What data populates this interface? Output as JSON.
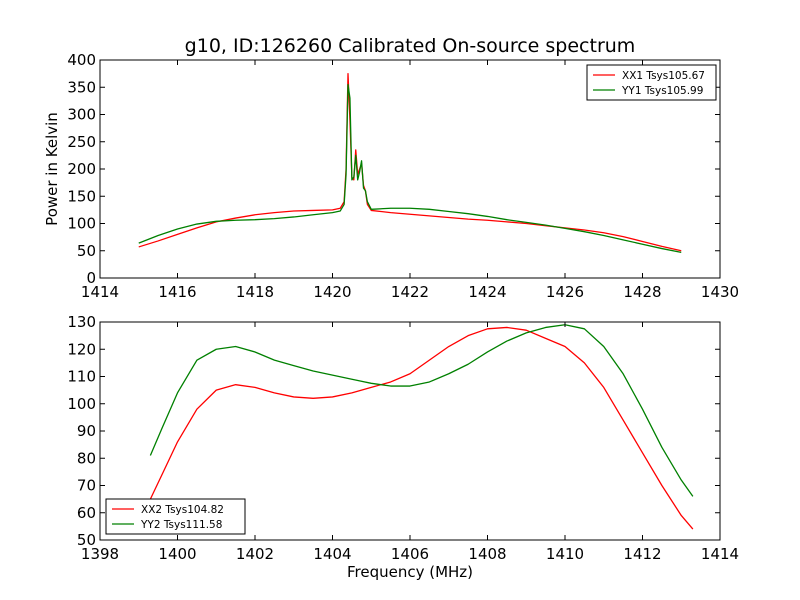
{
  "title": "g10, ID:126260 Calibrated On-source spectrum",
  "colors": {
    "xx": "#ff0000",
    "yy": "#008000",
    "axis": "#000000"
  },
  "chart_data": [
    {
      "type": "line",
      "title": "g10, ID:126260 Calibrated On-source spectrum",
      "xlabel": "",
      "ylabel": "Power in Kelvin",
      "xlim": [
        1414,
        1430
      ],
      "ylim": [
        0,
        400
      ],
      "xticks": [
        1414,
        1416,
        1418,
        1420,
        1422,
        1424,
        1426,
        1428,
        1430
      ],
      "yticks": [
        0,
        50,
        100,
        150,
        200,
        250,
        300,
        350,
        400
      ],
      "grid": false,
      "legend": "top-right",
      "series": [
        {
          "name": "XX1 Tsys105.67",
          "color": "#ff0000",
          "x": [
            1415.0,
            1415.5,
            1416.0,
            1416.5,
            1417.0,
            1417.5,
            1418.0,
            1418.5,
            1419.0,
            1419.5,
            1420.0,
            1420.2,
            1420.3,
            1420.35,
            1420.4,
            1420.45,
            1420.5,
            1420.55,
            1420.6,
            1420.65,
            1420.7,
            1420.75,
            1420.8,
            1420.85,
            1420.9,
            1421.0,
            1421.5,
            1422.0,
            1422.5,
            1423.0,
            1423.5,
            1424.0,
            1424.5,
            1425.0,
            1425.5,
            1426.0,
            1426.5,
            1427.0,
            1427.5,
            1428.0,
            1428.5,
            1429.0
          ],
          "values": [
            57,
            68,
            80,
            92,
            103,
            110,
            116,
            120,
            123,
            124,
            125,
            128,
            140,
            200,
            375,
            290,
            185,
            180,
            235,
            190,
            200,
            210,
            170,
            160,
            135,
            124,
            120,
            117,
            114,
            111,
            108,
            106,
            103,
            100,
            96,
            92,
            88,
            83,
            76,
            67,
            58,
            50
          ]
        },
        {
          "name": "YY1 Tsys105.99",
          "color": "#008000",
          "x": [
            1415.0,
            1415.5,
            1416.0,
            1416.5,
            1417.0,
            1417.5,
            1418.0,
            1418.5,
            1419.0,
            1419.5,
            1420.0,
            1420.2,
            1420.3,
            1420.35,
            1420.4,
            1420.45,
            1420.5,
            1420.55,
            1420.6,
            1420.65,
            1420.7,
            1420.75,
            1420.8,
            1420.85,
            1420.9,
            1421.0,
            1421.5,
            1422.0,
            1422.5,
            1423.0,
            1423.5,
            1424.0,
            1424.5,
            1425.0,
            1425.5,
            1426.0,
            1426.5,
            1427.0,
            1427.5,
            1428.0,
            1428.5,
            1429.0
          ],
          "values": [
            64,
            78,
            90,
            99,
            104,
            106,
            107,
            109,
            112,
            116,
            120,
            123,
            135,
            190,
            355,
            330,
            180,
            185,
            225,
            180,
            195,
            215,
            165,
            160,
            140,
            126,
            128,
            128,
            126,
            122,
            118,
            113,
            107,
            102,
            97,
            91,
            85,
            78,
            70,
            62,
            54,
            47
          ]
        }
      ]
    },
    {
      "type": "line",
      "title": "",
      "xlabel": "Frequency (MHz)",
      "ylabel": "",
      "xlim": [
        1398,
        1414
      ],
      "ylim": [
        50,
        130
      ],
      "xticks": [
        1398,
        1400,
        1402,
        1404,
        1406,
        1408,
        1410,
        1412,
        1414
      ],
      "yticks": [
        50,
        60,
        70,
        80,
        90,
        100,
        110,
        120,
        130
      ],
      "grid": false,
      "legend": "bottom-left",
      "series": [
        {
          "name": "XX2 Tsys104.82",
          "color": "#ff0000",
          "x": [
            1399.3,
            1399.6,
            1400.0,
            1400.5,
            1401.0,
            1401.5,
            1402.0,
            1402.5,
            1403.0,
            1403.5,
            1404.0,
            1404.5,
            1405.0,
            1405.5,
            1406.0,
            1406.5,
            1407.0,
            1407.5,
            1408.0,
            1408.5,
            1409.0,
            1409.5,
            1410.0,
            1410.5,
            1411.0,
            1411.5,
            1412.0,
            1412.5,
            1413.0,
            1413.3
          ],
          "values": [
            65,
            74,
            86,
            98,
            105,
            107,
            106,
            104,
            102.5,
            102,
            102.5,
            104,
            106,
            108,
            111,
            116,
            121,
            125,
            127.5,
            128,
            127,
            124,
            121,
            115,
            106,
            94,
            82,
            70,
            59,
            54
          ]
        },
        {
          "name": "YY2 Tsys111.58",
          "color": "#008000",
          "x": [
            1399.3,
            1399.6,
            1400.0,
            1400.5,
            1401.0,
            1401.5,
            1402.0,
            1402.5,
            1403.0,
            1403.5,
            1404.0,
            1404.5,
            1405.0,
            1405.5,
            1406.0,
            1406.5,
            1407.0,
            1407.5,
            1408.0,
            1408.5,
            1409.0,
            1409.5,
            1410.0,
            1410.5,
            1411.0,
            1411.5,
            1412.0,
            1412.5,
            1413.0,
            1413.3
          ],
          "values": [
            81,
            91,
            104,
            116,
            120,
            121,
            119,
            116,
            114,
            112,
            110.5,
            109,
            107.5,
            106.5,
            106.5,
            108,
            111,
            114.5,
            119,
            123,
            126,
            128,
            129,
            127.5,
            121,
            111,
            98,
            84,
            72,
            66
          ]
        }
      ]
    }
  ]
}
